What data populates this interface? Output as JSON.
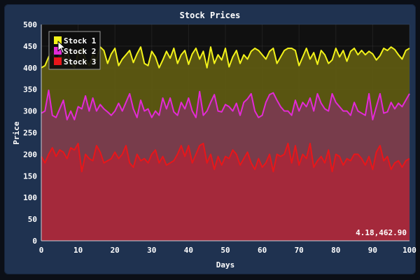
{
  "window": {
    "background": "#1f3250",
    "plot_background": "#101010"
  },
  "coordinate_readout": "4.18,462.90",
  "chart_data": {
    "type": "area",
    "title": "Stock Prices",
    "xlabel": "Days",
    "ylabel": "Price",
    "xlim": [
      0,
      100
    ],
    "ylim": [
      0,
      500
    ],
    "xticks": [
      0,
      10,
      20,
      30,
      40,
      50,
      60,
      70,
      80,
      90,
      100
    ],
    "yticks": [
      0,
      50,
      100,
      150,
      200,
      250,
      300,
      350,
      400,
      450,
      500
    ],
    "grid": true,
    "legend_position": "top-left",
    "x": [
      0,
      1,
      2,
      3,
      4,
      5,
      6,
      7,
      8,
      9,
      10,
      11,
      12,
      13,
      14,
      15,
      16,
      17,
      18,
      19,
      20,
      21,
      22,
      23,
      24,
      25,
      26,
      27,
      28,
      29,
      30,
      31,
      32,
      33,
      34,
      35,
      36,
      37,
      38,
      39,
      40,
      41,
      42,
      43,
      44,
      45,
      46,
      47,
      48,
      49,
      50,
      51,
      52,
      53,
      54,
      55,
      56,
      57,
      58,
      59,
      60,
      61,
      62,
      63,
      64,
      65,
      66,
      67,
      68,
      69,
      70,
      71,
      72,
      73,
      74,
      75,
      76,
      77,
      78,
      79,
      80,
      81,
      82,
      83,
      84,
      85,
      86,
      87,
      88,
      89,
      90,
      91,
      92,
      93,
      94,
      95,
      96,
      97,
      98,
      99,
      100
    ],
    "series": [
      {
        "name": "Stock 1",
        "line_color": "#f2f21a",
        "fill_color": "#5e5a12",
        "values": [
          400,
          405,
          425,
          440,
          410,
          430,
          420,
          438,
          412,
          400,
          435,
          445,
          420,
          405,
          430,
          418,
          448,
          440,
          410,
          432,
          445,
          405,
          420,
          430,
          440,
          412,
          432,
          448,
          410,
          405,
          438,
          425,
          400,
          418,
          438,
          422,
          445,
          410,
          430,
          440,
          408,
          432,
          445,
          420,
          438,
          400,
          448,
          410,
          430,
          418,
          445,
          402,
          425,
          440,
          410,
          430,
          420,
          438,
          445,
          440,
          430,
          420,
          438,
          445,
          410,
          425,
          440,
          445,
          445,
          440,
          405,
          425,
          445,
          420,
          435,
          408,
          440,
          430,
          410,
          418,
          445,
          425,
          440,
          415,
          438,
          445,
          430,
          440,
          430,
          438,
          432,
          418,
          428,
          445,
          440,
          448,
          442,
          430,
          420,
          440,
          445
        ]
      },
      {
        "name": "Stock 2",
        "line_color": "#e22ad6",
        "fill_color": "#7a3b4f",
        "values": [
          295,
          300,
          348,
          290,
          285,
          305,
          325,
          280,
          300,
          280,
          310,
          305,
          335,
          300,
          330,
          300,
          315,
          305,
          298,
          290,
          300,
          318,
          300,
          320,
          340,
          305,
          285,
          325,
          300,
          305,
          285,
          300,
          290,
          330,
          305,
          330,
          298,
          290,
          320,
          305,
          330,
          300,
          285,
          345,
          290,
          300,
          320,
          338,
          300,
          298,
          315,
          310,
          300,
          318,
          290,
          320,
          328,
          340,
          300,
          285,
          290,
          320,
          338,
          342,
          325,
          310,
          300,
          300,
          290,
          325,
          300,
          320,
          310,
          330,
          300,
          340,
          318,
          305,
          300,
          340,
          320,
          310,
          300,
          300,
          290,
          320,
          300,
          295,
          290,
          340,
          280,
          310,
          340,
          295,
          298,
          320,
          305,
          318,
          310,
          325,
          340
        ]
      },
      {
        "name": "Stock 3",
        "line_color": "#e8161a",
        "fill_color": "#a6283a",
        "values": [
          195,
          180,
          200,
          215,
          195,
          210,
          205,
          190,
          215,
          210,
          225,
          160,
          200,
          190,
          185,
          220,
          205,
          180,
          185,
          190,
          205,
          190,
          200,
          220,
          180,
          170,
          200,
          185,
          190,
          180,
          200,
          210,
          180,
          195,
          175,
          180,
          185,
          200,
          220,
          195,
          220,
          180,
          200,
          220,
          225,
          180,
          200,
          165,
          195,
          175,
          195,
          190,
          210,
          200,
          175,
          190,
          205,
          180,
          165,
          190,
          170,
          180,
          200,
          160,
          200,
          195,
          200,
          225,
          180,
          220,
          175,
          200,
          190,
          225,
          170,
          185,
          195,
          180,
          210,
          160,
          200,
          195,
          175,
          190,
          185,
          200,
          200,
          190,
          175,
          195,
          165,
          205,
          220,
          185,
          195,
          165,
          180,
          185,
          170,
          185,
          190
        ]
      }
    ]
  }
}
